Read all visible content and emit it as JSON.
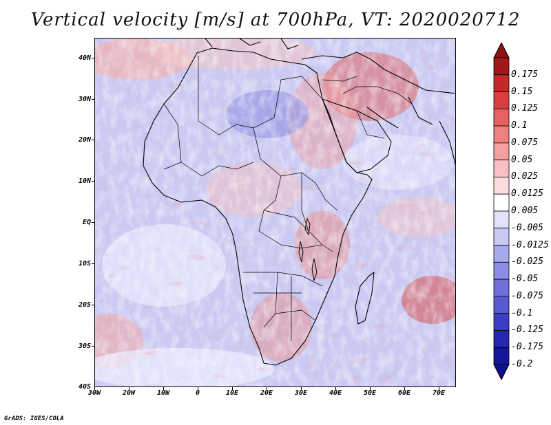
{
  "title": "Vertical velocity [m/s] at 700hPa, VT: 2020020712",
  "credit": "GrADS: IGES/COLA",
  "map": {
    "lat_labels": [
      "40N",
      "30N",
      "20N",
      "10N",
      "EQ",
      "10S",
      "20S",
      "30S",
      "40S"
    ],
    "lon_labels": [
      "30W",
      "20W",
      "10W",
      "0",
      "10E",
      "20E",
      "30E",
      "40E",
      "50E",
      "60E",
      "70E"
    ],
    "lat_range": [
      -40,
      44
    ],
    "lon_range": [
      -30,
      76
    ]
  },
  "colorbar": {
    "labels": [
      "0.175",
      "0.15",
      "0.125",
      "0.1",
      "0.075",
      "0.05",
      "0.025",
      "0.0125",
      "0.005",
      "-0.005",
      "-0.0125",
      "-0.025",
      "-0.05",
      "-0.075",
      "-0.1",
      "-0.125",
      "-0.175",
      "-0.2"
    ],
    "colors": [
      "#a01818",
      "#c02a2a",
      "#d84040",
      "#e86060",
      "#f08080",
      "#f4a0a0",
      "#f8c0c0",
      "#fcdcdc",
      "#ffffff",
      "#e2e2fa",
      "#c8c8f4",
      "#a8a8ee",
      "#8c8ce6",
      "#7070dc",
      "#5858d2",
      "#3c3cc4",
      "#2626b0",
      "#16169a"
    ],
    "top_arrow_color": "#901010",
    "bottom_arrow_color": "#10108c"
  }
}
